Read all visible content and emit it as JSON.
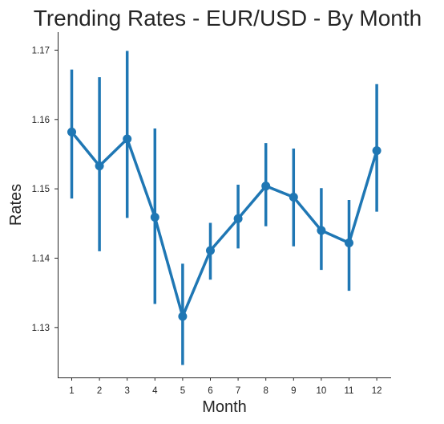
{
  "chart_data": {
    "type": "line",
    "title": "Trending Rates - EUR/USD - By Month",
    "xlabel": "Month",
    "ylabel": "Rates",
    "x": [
      1,
      2,
      3,
      4,
      5,
      6,
      7,
      8,
      9,
      10,
      11,
      12
    ],
    "x_tick_labels": [
      "1",
      "2",
      "3",
      "4",
      "5",
      "6",
      "7",
      "8",
      "9",
      "10",
      "11",
      "12"
    ],
    "y_ticks": [
      1.13,
      1.14,
      1.15,
      1.16,
      1.17
    ],
    "y_tick_labels": [
      "1.13",
      "1.14",
      "1.15",
      "1.16",
      "1.17"
    ],
    "ylim": [
      1.1228,
      1.1726
    ],
    "grid": false,
    "series": [
      {
        "values": [
          1.1582,
          1.1533,
          1.1572,
          1.1459,
          1.1316,
          1.1411,
          1.1457,
          1.1504,
          1.1488,
          1.144,
          1.1422,
          1.1555
        ],
        "ci_low": [
          1.1486,
          1.141,
          1.1458,
          1.1334,
          1.1246,
          1.1369,
          1.1414,
          1.1446,
          1.1417,
          1.1383,
          1.1353,
          1.1467
        ],
        "ci_high": [
          1.1672,
          1.1661,
          1.1699,
          1.1587,
          1.1392,
          1.1451,
          1.1506,
          1.1566,
          1.1558,
          1.1501,
          1.1484,
          1.1651
        ],
        "color": "#1f77b4"
      }
    ]
  }
}
